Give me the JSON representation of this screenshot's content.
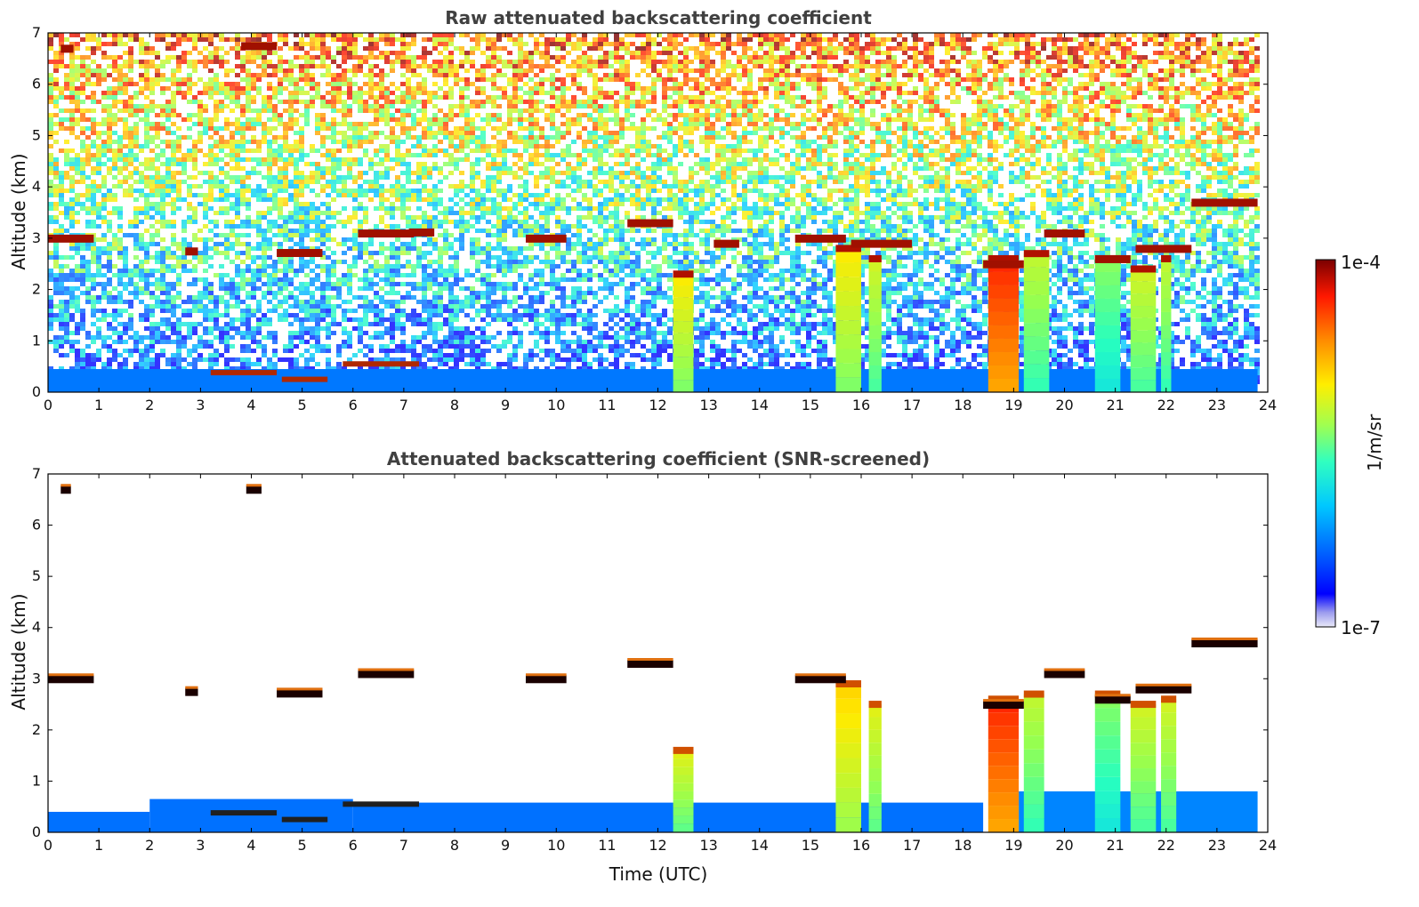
{
  "chart_data": [
    {
      "type": "heatmap",
      "title": "Raw attenuated backscattering coefficient",
      "xlabel": "",
      "ylabel": "Altitude (km)",
      "xlim": [
        0,
        24
      ],
      "ylim": [
        0,
        7
      ],
      "xticks": [
        0,
        1,
        2,
        3,
        4,
        5,
        6,
        7,
        8,
        9,
        10,
        11,
        12,
        13,
        14,
        15,
        16,
        17,
        18,
        19,
        20,
        21,
        22,
        23,
        24
      ],
      "yticks": [
        0,
        1,
        2,
        3,
        4,
        5,
        6,
        7
      ],
      "data_end_time": 23.8,
      "boundary_layer": [
        {
          "start": 0,
          "end": 23.8,
          "top": 0.45,
          "level": 0.18
        }
      ],
      "columns": [
        {
          "start": 12.3,
          "end": 12.7,
          "top": 2.3,
          "level": 0.55
        },
        {
          "start": 15.5,
          "end": 16.0,
          "top": 2.8,
          "level": 0.55
        },
        {
          "start": 16.15,
          "end": 16.4,
          "top": 2.6,
          "level": 0.5
        },
        {
          "start": 18.5,
          "end": 19.1,
          "top": 2.6,
          "level": 0.78
        },
        {
          "start": 19.2,
          "end": 19.7,
          "top": 2.7,
          "level": 0.48
        },
        {
          "start": 20.6,
          "end": 21.1,
          "top": 2.6,
          "level": 0.42
        },
        {
          "start": 21.3,
          "end": 21.8,
          "top": 2.4,
          "level": 0.5
        },
        {
          "start": 21.9,
          "end": 22.1,
          "top": 2.6,
          "level": 0.48
        }
      ],
      "cloud_patches": [
        {
          "start": 0.0,
          "end": 0.9,
          "alt": 3.0
        },
        {
          "start": 2.7,
          "end": 2.95,
          "alt": 2.75
        },
        {
          "start": 4.5,
          "end": 5.4,
          "alt": 2.72
        },
        {
          "start": 6.1,
          "end": 7.2,
          "alt": 3.1
        },
        {
          "start": 7.1,
          "end": 7.6,
          "alt": 3.12
        },
        {
          "start": 9.4,
          "end": 10.2,
          "alt": 3.0
        },
        {
          "start": 11.4,
          "end": 12.3,
          "alt": 3.3
        },
        {
          "start": 13.1,
          "end": 13.6,
          "alt": 2.9
        },
        {
          "start": 14.7,
          "end": 15.7,
          "alt": 3.0
        },
        {
          "start": 15.8,
          "end": 17.0,
          "alt": 2.9
        },
        {
          "start": 18.4,
          "end": 19.2,
          "alt": 2.5
        },
        {
          "start": 19.6,
          "end": 20.4,
          "alt": 3.1
        },
        {
          "start": 20.6,
          "end": 21.3,
          "alt": 2.6
        },
        {
          "start": 21.4,
          "end": 22.5,
          "alt": 2.8
        },
        {
          "start": 22.5,
          "end": 23.8,
          "alt": 3.7
        },
        {
          "start": 3.8,
          "end": 4.5,
          "alt": 6.75
        },
        {
          "start": 0.25,
          "end": 0.5,
          "alt": 6.7
        }
      ],
      "low_aerosol": [
        {
          "start": 3.2,
          "end": 4.5,
          "alt": 0.38
        },
        {
          "start": 4.6,
          "end": 5.5,
          "alt": 0.25
        },
        {
          "start": 5.8,
          "end": 7.3,
          "alt": 0.55
        }
      ],
      "colorbar": {
        "label": "1/m/sr",
        "min_label": "1e-7",
        "max_label": "1e-4",
        "scale": "log",
        "colormap": "jet"
      }
    },
    {
      "type": "heatmap",
      "title": "Attenuated backscattering coefficient (SNR-screened)",
      "xlabel": "Time (UTC)",
      "ylabel": "Altitude (km)",
      "xlim": [
        0,
        24
      ],
      "ylim": [
        0,
        7
      ],
      "xticks": [
        0,
        1,
        2,
        3,
        4,
        5,
        6,
        7,
        8,
        9,
        10,
        11,
        12,
        13,
        14,
        15,
        16,
        17,
        18,
        19,
        20,
        21,
        22,
        23,
        24
      ],
      "yticks": [
        0,
        1,
        2,
        3,
        4,
        5,
        6,
        7
      ],
      "data_end_time": 23.8,
      "boundary_layer": [
        {
          "start": 0.0,
          "end": 2.0,
          "top": 0.4,
          "level": 0.17
        },
        {
          "start": 2.0,
          "end": 6.0,
          "top": 0.65,
          "level": 0.17
        },
        {
          "start": 6.0,
          "end": 18.4,
          "top": 0.58,
          "level": 0.17
        },
        {
          "start": 19.1,
          "end": 23.8,
          "top": 0.8,
          "level": 0.2
        }
      ],
      "columns": [
        {
          "start": 12.3,
          "end": 12.7,
          "top": 1.6,
          "level": 0.52
        },
        {
          "start": 15.5,
          "end": 16.0,
          "top": 2.9,
          "level": 0.58
        },
        {
          "start": 16.15,
          "end": 16.4,
          "top": 2.5,
          "level": 0.52
        },
        {
          "start": 18.5,
          "end": 19.1,
          "top": 2.6,
          "level": 0.78
        },
        {
          "start": 19.2,
          "end": 19.6,
          "top": 2.7,
          "level": 0.48
        },
        {
          "start": 20.6,
          "end": 21.1,
          "top": 2.7,
          "level": 0.42
        },
        {
          "start": 21.3,
          "end": 21.8,
          "top": 2.5,
          "level": 0.5
        },
        {
          "start": 21.9,
          "end": 22.2,
          "top": 2.6,
          "level": 0.5
        }
      ],
      "cloud_patches": [
        {
          "start": 0.0,
          "end": 0.9,
          "alt": 3.0
        },
        {
          "start": 2.7,
          "end": 2.95,
          "alt": 2.75
        },
        {
          "start": 4.5,
          "end": 5.4,
          "alt": 2.72
        },
        {
          "start": 6.1,
          "end": 7.2,
          "alt": 3.1
        },
        {
          "start": 9.4,
          "end": 10.2,
          "alt": 3.0
        },
        {
          "start": 11.4,
          "end": 12.3,
          "alt": 3.3
        },
        {
          "start": 14.7,
          "end": 15.7,
          "alt": 3.0
        },
        {
          "start": 18.4,
          "end": 19.2,
          "alt": 2.5
        },
        {
          "start": 19.6,
          "end": 20.4,
          "alt": 3.1
        },
        {
          "start": 20.6,
          "end": 21.3,
          "alt": 2.6
        },
        {
          "start": 21.4,
          "end": 22.5,
          "alt": 2.8
        },
        {
          "start": 22.5,
          "end": 23.8,
          "alt": 3.7
        },
        {
          "start": 0.25,
          "end": 0.45,
          "alt": 6.7
        },
        {
          "start": 3.9,
          "end": 4.2,
          "alt": 6.7
        }
      ],
      "low_aerosol": [
        {
          "start": 3.2,
          "end": 4.5,
          "alt": 0.38
        },
        {
          "start": 4.6,
          "end": 5.5,
          "alt": 0.25
        },
        {
          "start": 5.8,
          "end": 7.3,
          "alt": 0.55
        }
      ],
      "colorbar": {
        "label": "1/m/sr",
        "min_label": "1e-7",
        "max_label": "1e-4",
        "scale": "log",
        "colormap": "jet"
      }
    }
  ],
  "colorbar": {
    "label": "1/m/sr",
    "min_label": "1e-7",
    "max_label": "1e-4"
  }
}
